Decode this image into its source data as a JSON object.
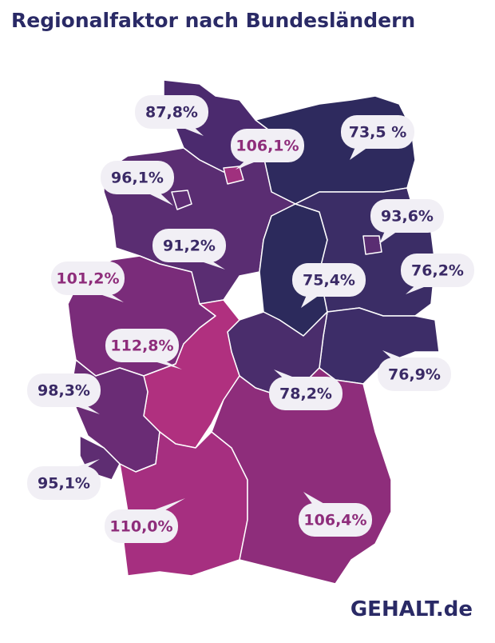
{
  "title": "Regionalfaktor nach Bundesländern",
  "regions": [
    {
      "label": "87,8%"
    },
    {
      "label": "106,1%"
    },
    {
      "label": "73,5 %"
    },
    {
      "label": "96,1%"
    },
    {
      "label": "93,6%"
    },
    {
      "label": "91,2%"
    },
    {
      "label": "101,2%"
    },
    {
      "label": "75,4%"
    },
    {
      "label": "76,2%"
    },
    {
      "label": "112,8%"
    },
    {
      "label": "98,3%"
    },
    {
      "label": "78,2%"
    },
    {
      "label": "76,9%"
    },
    {
      "label": "95,1%"
    },
    {
      "label": "110,0%"
    },
    {
      "label": "106,4%"
    }
  ],
  "logo": "GEHALT.de"
}
